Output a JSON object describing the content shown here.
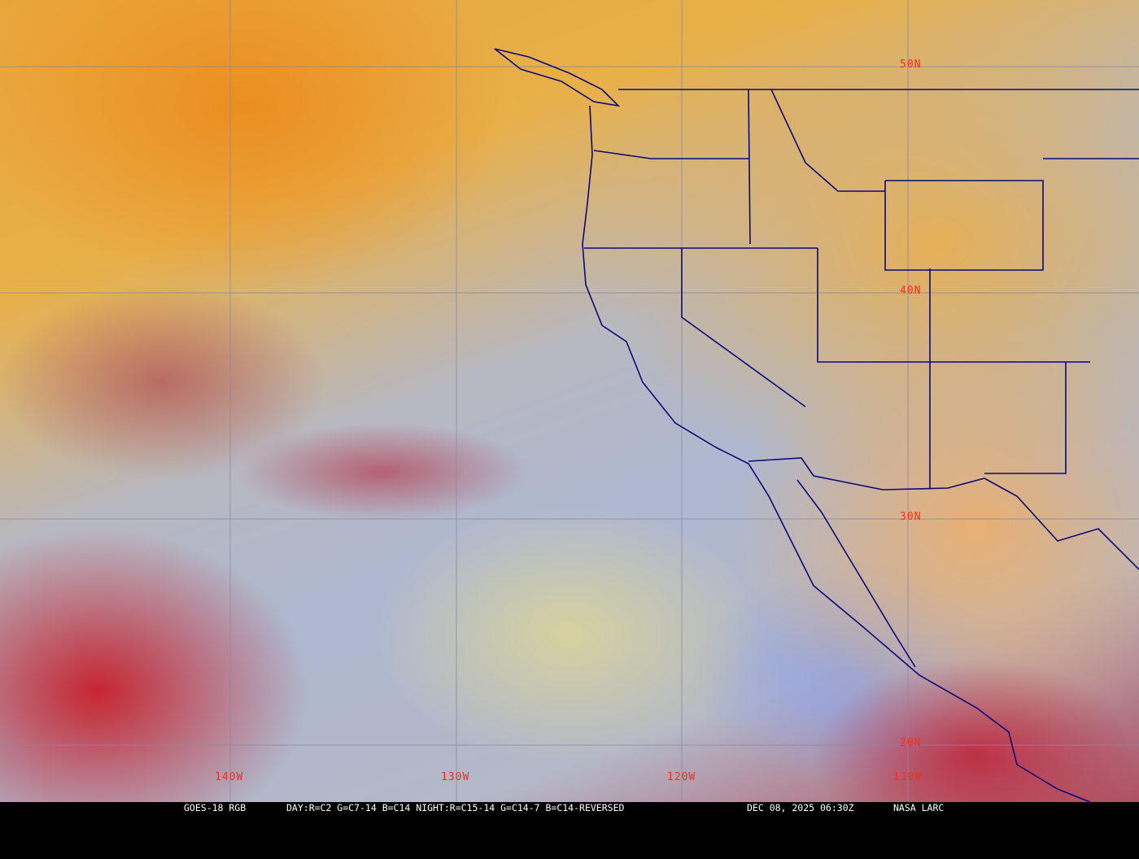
{
  "map": {
    "product": "GOES-18 RGB",
    "recipe": "DAY:R=C2 G=C7-14 B=C14 NIGHT:R=C15-14 G=C14-7 B=C14-REVERSED",
    "timestamp": "DEC 08, 2025 06:30Z",
    "credit": "NASA LARC",
    "lat_labels": [
      "50N",
      "40N",
      "30N",
      "20N"
    ],
    "lon_labels": [
      "140W",
      "130W",
      "120W",
      "110W"
    ],
    "colors": {
      "grid": "#8a8aa0",
      "boundaries": "#0a0a78",
      "labels": "#ff2a1a"
    }
  }
}
